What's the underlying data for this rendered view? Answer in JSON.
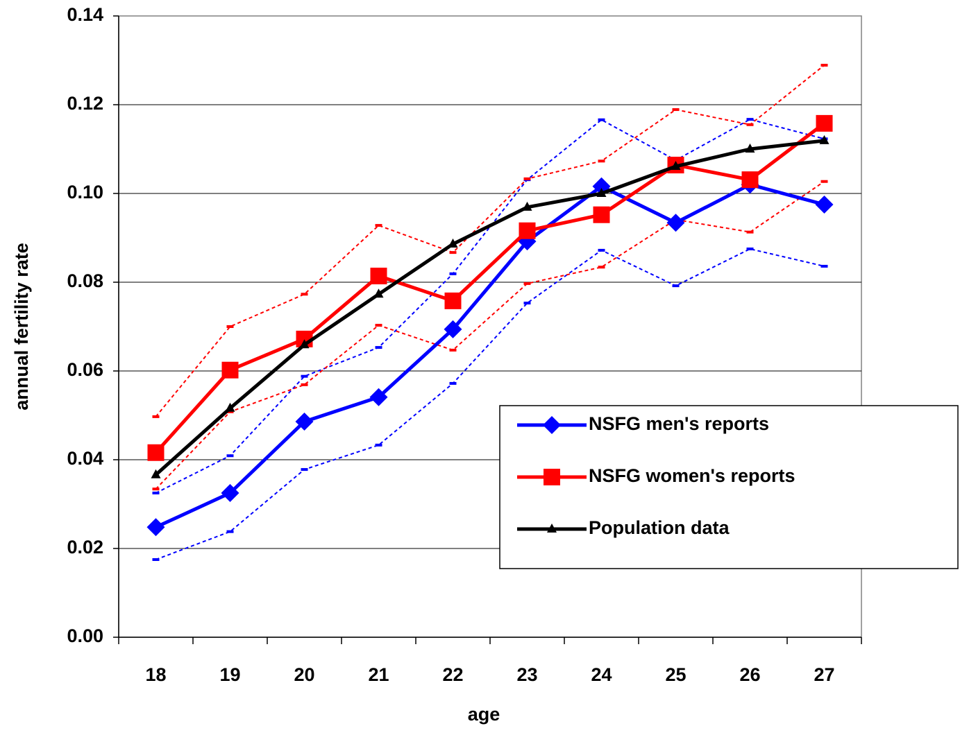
{
  "chart_data": {
    "type": "line",
    "xlabel": "age",
    "ylabel": "annual fertility rate",
    "categories": [
      "18",
      "19",
      "20",
      "21",
      "22",
      "23",
      "24",
      "25",
      "26",
      "27"
    ],
    "ylim": [
      0,
      0.14
    ],
    "yticks": [
      {
        "value": 0,
        "label": "0.00"
      },
      {
        "value": 0.02,
        "label": "0.02"
      },
      {
        "value": 0.04,
        "label": "0.04"
      },
      {
        "value": 0.06,
        "label": "0.06"
      },
      {
        "value": 0.08,
        "label": "0.08"
      },
      {
        "value": 0.1,
        "label": "0.10"
      },
      {
        "value": 0.12,
        "label": "0.12"
      },
      {
        "value": 0.14,
        "label": "0.14"
      }
    ],
    "grid": true,
    "legend": "lower right",
    "series": [
      {
        "color": "#0000ff",
        "dashed": true,
        "marker": "dash",
        "values": [
          0.0325,
          0.0409,
          0.0588,
          0.0653,
          0.0819,
          0.1031,
          0.1166,
          0.1075,
          0.1167,
          0.1123
        ]
      },
      {
        "color": "#0000ff",
        "dashed": true,
        "marker": "dash",
        "values": [
          0.0175,
          0.0238,
          0.0378,
          0.0433,
          0.0572,
          0.0753,
          0.0872,
          0.0792,
          0.0875,
          0.0836
        ]
      },
      {
        "color": "#ff0000",
        "dashed": true,
        "marker": "dash",
        "values": [
          0.0497,
          0.07,
          0.0773,
          0.0928,
          0.0867,
          0.1033,
          0.1073,
          0.1189,
          0.1155,
          0.1289
        ]
      },
      {
        "color": "#ff0000",
        "dashed": true,
        "marker": "dash",
        "values": [
          0.0334,
          0.0508,
          0.0569,
          0.0703,
          0.0647,
          0.0797,
          0.0834,
          0.0941,
          0.0913,
          0.1027
        ]
      },
      {
        "name": "NSFG men's reports",
        "color": "#0000ff",
        "marker": "diamond",
        "values": [
          0.0248,
          0.0325,
          0.0486,
          0.0541,
          0.0694,
          0.0892,
          0.1016,
          0.0934,
          0.102,
          0.0975
        ]
      },
      {
        "name": "NSFG women's reports",
        "color": "#ff0000",
        "marker": "square",
        "values": [
          0.0416,
          0.0602,
          0.0672,
          0.0814,
          0.0758,
          0.0916,
          0.0952,
          0.1064,
          0.1031,
          0.1158
        ]
      },
      {
        "name": "Population data",
        "color": "#000000",
        "marker": "triangle",
        "values": [
          0.0366,
          0.0516,
          0.0659,
          0.0773,
          0.0886,
          0.0969,
          0.1,
          0.1061,
          0.11,
          0.1119
        ]
      }
    ]
  }
}
